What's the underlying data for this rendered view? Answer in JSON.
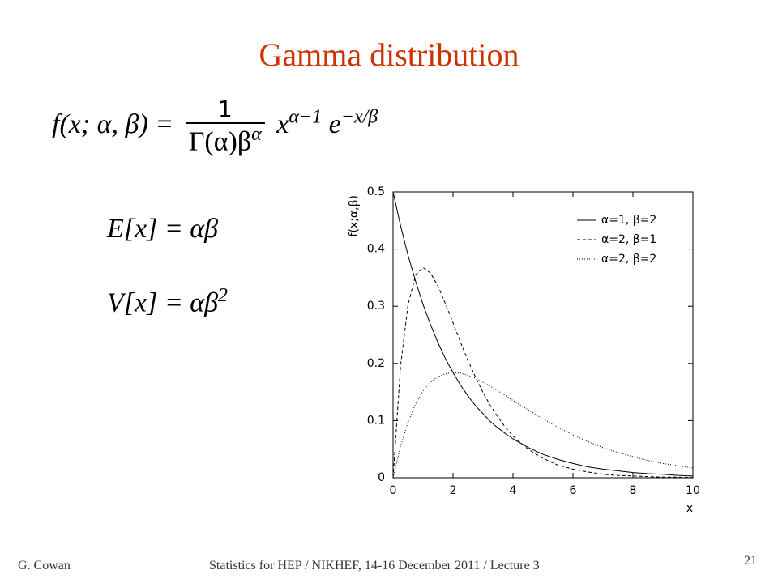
{
  "slide": {
    "title": "Gamma distribution",
    "equations": {
      "pdf": {
        "lhs": "f(x; α, β) =",
        "num": "1",
        "den": "Γ(α)β",
        "den_sup": "α",
        "x": "x",
        "x_sup": "α−1",
        "e": "e",
        "e_sup": "−x/β"
      },
      "mean": "E[x] = αβ",
      "var": {
        "text": "V[x] = αβ",
        "sup": "2"
      }
    },
    "footer": {
      "author": "G. Cowan",
      "course": "Statistics for HEP / NIKHEF, 14-16 December  2011 / Lecture 3",
      "page": "21"
    }
  },
  "chart_data": {
    "type": "line",
    "x_label": "x",
    "y_label": "f(x;α,β)",
    "x": [
      0,
      0.25,
      0.5,
      0.75,
      1,
      1.25,
      1.5,
      1.75,
      2,
      2.25,
      2.5,
      2.75,
      3,
      3.25,
      3.5,
      3.75,
      4,
      4.5,
      5,
      5.5,
      6,
      6.5,
      7,
      7.5,
      8,
      8.5,
      9,
      9.5,
      10
    ],
    "series": [
      {
        "name": "α=1, β=2",
        "color": "#000000",
        "style": "solid",
        "values": [
          0.5,
          0.441,
          0.389,
          0.344,
          0.303,
          0.268,
          0.236,
          0.208,
          0.184,
          0.162,
          0.143,
          0.126,
          0.112,
          0.098,
          0.087,
          0.077,
          0.068,
          0.053,
          0.041,
          0.032,
          0.025,
          0.019,
          0.015,
          0.012,
          0.009,
          0.007,
          0.006,
          0.004,
          0.003
        ]
      },
      {
        "name": "α=2, β=1",
        "color": "#000000",
        "style": "dashed",
        "values": [
          0,
          0.195,
          0.303,
          0.354,
          0.368,
          0.358,
          0.335,
          0.304,
          0.271,
          0.237,
          0.205,
          0.176,
          0.149,
          0.126,
          0.106,
          0.088,
          0.073,
          0.05,
          0.034,
          0.022,
          0.015,
          0.01,
          0.006,
          0.004,
          0.003,
          0.002,
          0.001,
          0.001,
          0.0005
        ]
      },
      {
        "name": "α=2, β=2",
        "color": "#000000",
        "style": "dotted",
        "values": [
          0,
          0.055,
          0.097,
          0.129,
          0.152,
          0.167,
          0.177,
          0.182,
          0.184,
          0.183,
          0.179,
          0.174,
          0.167,
          0.16,
          0.152,
          0.144,
          0.135,
          0.119,
          0.103,
          0.088,
          0.075,
          0.063,
          0.053,
          0.044,
          0.037,
          0.03,
          0.025,
          0.021,
          0.017
        ]
      }
    ],
    "xlim": [
      0,
      10
    ],
    "xticks": [
      0,
      2,
      4,
      6,
      8,
      10
    ],
    "ylim": [
      0,
      0.5
    ],
    "yticks": [
      0,
      0.1,
      0.2,
      0.3,
      0.4,
      0.5
    ],
    "legend": "upper right"
  }
}
